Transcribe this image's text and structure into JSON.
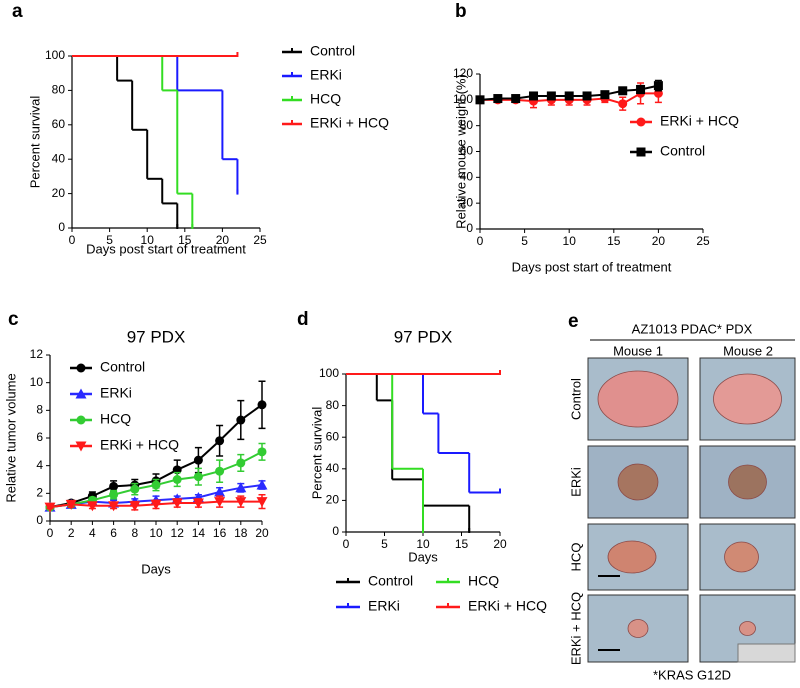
{
  "chart_data": [
    {
      "type": "step",
      "panel": "a",
      "x_label": "Days post start of treatment",
      "y_label": "Percent survival",
      "xlim": [
        0,
        25
      ],
      "xticks": [
        0,
        5,
        10,
        15,
        20,
        25
      ],
      "ylim": [
        0,
        100
      ],
      "yticks": [
        0,
        20,
        40,
        60,
        80,
        100
      ],
      "legend": "right",
      "series": [
        {
          "name": "Control",
          "color": "#000000",
          "x": [
            0,
            6,
            8,
            10,
            12,
            14
          ],
          "values": [
            100,
            85.7,
            57.1,
            28.6,
            14.3,
            0
          ]
        },
        {
          "name": "ERKi",
          "color": "#1a1aff",
          "x": [
            0,
            14,
            20,
            22
          ],
          "values": [
            100,
            80,
            40,
            20
          ]
        },
        {
          "name": "HCQ",
          "color": "#33dd22",
          "x": [
            0,
            12,
            14,
            16
          ],
          "values": [
            100,
            80,
            20,
            0
          ]
        },
        {
          "name": "ERKi + HCQ",
          "color": "#ff1a1a",
          "x": [
            0,
            22
          ],
          "values": [
            100,
            100
          ]
        }
      ]
    },
    {
      "type": "line",
      "panel": "b",
      "x_label": "Days post start of treatment",
      "y_label": "Relative mouse weight (%)",
      "xlim": [
        0,
        25
      ],
      "xticks": [
        0,
        5,
        10,
        15,
        20,
        25
      ],
      "ylim": [
        0,
        120
      ],
      "yticks": [
        0,
        20,
        40,
        60,
        80,
        100,
        120
      ],
      "legend": "right",
      "x": [
        0,
        2,
        4,
        6,
        8,
        10,
        12,
        14,
        16,
        18,
        20
      ],
      "series": [
        {
          "name": "ERKi + HCQ",
          "color": "#ff1a1a",
          "marker": "circle",
          "values": [
            100,
            100,
            100,
            99,
            100,
            100,
            100,
            101,
            97,
            105,
            105
          ],
          "errors": [
            2,
            2,
            2,
            5,
            4,
            4,
            4,
            3,
            5,
            8,
            7
          ]
        },
        {
          "name": "Control",
          "color": "#000000",
          "marker": "square",
          "values": [
            100,
            101,
            101,
            103,
            103,
            103,
            103,
            104,
            107,
            108,
            111
          ],
          "errors": [
            2,
            2,
            2,
            2,
            2,
            2,
            2,
            2,
            2,
            3,
            4
          ]
        }
      ]
    },
    {
      "type": "line",
      "panel": "c",
      "title": "97 PDX",
      "x_label": "Days",
      "y_label": "Relative tumor volume",
      "xlim": [
        0,
        20
      ],
      "xticks": [
        0,
        2,
        4,
        6,
        8,
        10,
        12,
        14,
        16,
        18,
        20
      ],
      "ylim": [
        0,
        12
      ],
      "yticks": [
        0,
        2,
        4,
        6,
        8,
        10,
        12
      ],
      "legend": "upper left",
      "x": [
        0,
        2,
        4,
        6,
        8,
        10,
        12,
        14,
        16,
        18,
        20
      ],
      "series": [
        {
          "name": "Control",
          "color": "#000000",
          "marker": "circle",
          "values": [
            1,
            1.3,
            1.8,
            2.5,
            2.6,
            2.9,
            3.7,
            4.4,
            5.8,
            7.3,
            8.4
          ],
          "errors": [
            0.1,
            0.2,
            0.3,
            0.4,
            0.4,
            0.5,
            0.7,
            0.9,
            1.1,
            1.4,
            1.7
          ]
        },
        {
          "name": "ERKi",
          "color": "#2a2aff",
          "marker": "triangle-up",
          "values": [
            1,
            1.2,
            1.4,
            1.3,
            1.4,
            1.5,
            1.6,
            1.7,
            2.1,
            2.4,
            2.6
          ],
          "errors": [
            0.1,
            0.1,
            0.2,
            0.2,
            0.2,
            0.3,
            0.2,
            0.2,
            0.3,
            0.3,
            0.3
          ]
        },
        {
          "name": "HCQ",
          "color": "#33cc33",
          "marker": "circle",
          "values": [
            1,
            1.2,
            1.5,
            1.9,
            2.3,
            2.6,
            3.0,
            3.2,
            3.6,
            4.2,
            5.0
          ],
          "errors": [
            0.1,
            0.2,
            0.2,
            0.3,
            0.4,
            0.4,
            0.5,
            0.6,
            0.8,
            0.6,
            0.6
          ]
        },
        {
          "name": "ERKi + HCQ",
          "color": "#ff1a1a",
          "marker": "triangle-down",
          "values": [
            1,
            1.2,
            1.1,
            1.1,
            1.1,
            1.2,
            1.3,
            1.3,
            1.4,
            1.4,
            1.4
          ],
          "errors": [
            0.1,
            0.2,
            0.2,
            0.2,
            0.3,
            0.3,
            0.3,
            0.3,
            0.4,
            0.4,
            0.5
          ]
        }
      ]
    },
    {
      "type": "step",
      "panel": "d",
      "title": "97 PDX",
      "x_label": "Days",
      "y_label": "Percent survival",
      "xlim": [
        0,
        20
      ],
      "xticks": [
        0,
        5,
        10,
        15,
        20
      ],
      "ylim": [
        0,
        100
      ],
      "yticks": [
        0,
        20,
        40,
        60,
        80,
        100
      ],
      "legend": "bottom",
      "series": [
        {
          "name": "Control",
          "color": "#000000",
          "x": [
            0,
            4,
            6,
            10,
            16
          ],
          "values": [
            100,
            83.3,
            33.3,
            16.7,
            0
          ]
        },
        {
          "name": "HCQ",
          "color": "#33dd22",
          "x": [
            0,
            6,
            10
          ],
          "values": [
            100,
            40,
            0
          ]
        },
        {
          "name": "ERKi",
          "color": "#1a1aff",
          "x": [
            0,
            10,
            12,
            16,
            20
          ],
          "values": [
            100,
            75,
            50,
            25,
            25
          ]
        },
        {
          "name": "ERKi + HCQ",
          "color": "#ff1a1a",
          "x": [
            0,
            20
          ],
          "values": [
            100,
            100
          ]
        }
      ]
    }
  ],
  "panel_e": {
    "panel": "e",
    "header": "AZ1013 PDAC* PDX",
    "columns": [
      "Mouse 1",
      "Mouse 2"
    ],
    "rows": [
      "Control",
      "ERKi",
      "HCQ",
      "ERKi + HCQ"
    ],
    "footnote": "*KRAS G12D"
  }
}
